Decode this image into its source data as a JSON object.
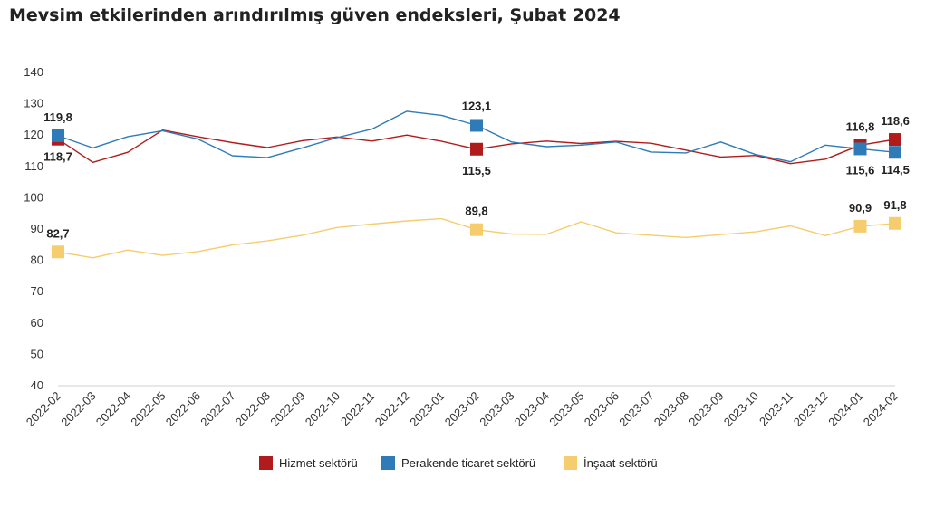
{
  "title": "Mevsim etkilerinden arındırılmış güven endeksleri, Şubat 2024",
  "chart_data": {
    "type": "line",
    "title": "Mevsim etkilerinden arındırılmış güven endeksleri, Şubat 2024",
    "xlabel": "",
    "ylabel": "",
    "ylim": [
      40,
      140
    ],
    "yticks": [
      40,
      50,
      60,
      70,
      80,
      90,
      100,
      110,
      120,
      130,
      140
    ],
    "grid": false,
    "legend_position": "bottom",
    "categories": [
      "2022-02",
      "2022-03",
      "2022-04",
      "2022-05",
      "2022-06",
      "2022-07",
      "2022-08",
      "2022-09",
      "2022-10",
      "2022-11",
      "2022-12",
      "2023-01",
      "2023-02",
      "2023-03",
      "2023-04",
      "2023-05",
      "2023-06",
      "2023-07",
      "2023-08",
      "2023-09",
      "2023-10",
      "2023-11",
      "2023-12",
      "2024-01",
      "2024-02"
    ],
    "series": [
      {
        "name": "Hizmet sektörü",
        "color": "#b01c1c",
        "values": [
          118.7,
          111.3,
          114.5,
          121.6,
          119.5,
          117.6,
          116.0,
          118.2,
          119.4,
          118.1,
          120.0,
          118.0,
          115.5,
          117.2,
          118.1,
          117.3,
          118.0,
          117.4,
          115.2,
          113.0,
          113.5,
          110.9,
          112.3,
          116.8,
          118.6
        ],
        "marked": [
          {
            "index": 0,
            "label": "118,7"
          },
          {
            "index": 12,
            "label": "115,5"
          },
          {
            "index": 23,
            "label": "116,8"
          },
          {
            "index": 24,
            "label": "118,6"
          }
        ]
      },
      {
        "name": "Perakende ticaret sektörü",
        "color": "#2e7bb8",
        "values": [
          119.8,
          115.9,
          119.5,
          121.4,
          118.8,
          113.4,
          112.8,
          115.9,
          119.2,
          121.9,
          127.6,
          126.3,
          123.1,
          117.8,
          116.3,
          116.8,
          117.8,
          114.6,
          114.3,
          117.8,
          113.8,
          111.5,
          116.8,
          115.6,
          114.5
        ],
        "marked": [
          {
            "index": 0,
            "label": "119,8"
          },
          {
            "index": 12,
            "label": "123,1"
          },
          {
            "index": 23,
            "label": "115,6"
          },
          {
            "index": 24,
            "label": "114,5"
          }
        ]
      },
      {
        "name": "İnşaat sektörü",
        "color": "#f5cd6f",
        "values": [
          82.7,
          80.8,
          83.3,
          81.6,
          82.8,
          84.9,
          86.2,
          88.0,
          90.5,
          91.6,
          92.6,
          93.3,
          89.8,
          88.4,
          88.3,
          92.3,
          88.8,
          88.0,
          87.3,
          88.2,
          89.1,
          91.0,
          87.9,
          90.9,
          91.8
        ],
        "marked": [
          {
            "index": 0,
            "label": "82,7"
          },
          {
            "index": 12,
            "label": "89,8"
          },
          {
            "index": 23,
            "label": "90,9"
          },
          {
            "index": 24,
            "label": "91,8"
          }
        ]
      }
    ]
  }
}
